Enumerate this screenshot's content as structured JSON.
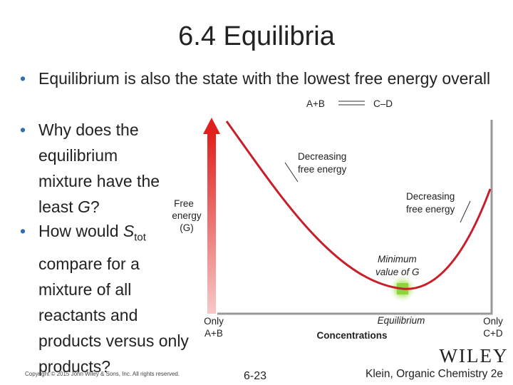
{
  "header": {
    "title": "6.4 Equilibria"
  },
  "bullets": [
    {
      "text": "Equilibrium is also the state with the lowest free energy overall"
    },
    {
      "before": "Why does the equilibrium mixture have the least ",
      "italic": "G",
      "after": "?"
    },
    {
      "before": "How would ",
      "italic": "S",
      "subscript": "tot",
      "after": " compare for a mixture of all reactants and products versus only products?"
    }
  ],
  "figure": {
    "reactants": "A+B",
    "products": "C–D",
    "y_axis": [
      "Free",
      "energy",
      "(G)"
    ],
    "left_arrow_label": [
      "Decreasing",
      "free energy"
    ],
    "right_arrow_label": [
      "Decreasing",
      "free energy"
    ],
    "minimum_label": [
      "Minimum",
      "value of G"
    ],
    "left_end": [
      "Only",
      "A+B"
    ],
    "equilibrium": "Equilibrium",
    "x_axis": "Concentrations",
    "right_end": [
      "Only",
      "C+D"
    ]
  },
  "footer": {
    "publisher": "WILEY",
    "copyright": "Copyright © 2015 John Wiley & Sons, Inc. All rights reserved.",
    "page": "6-23",
    "book": "Klein, Organic Chemistry 2e"
  }
}
